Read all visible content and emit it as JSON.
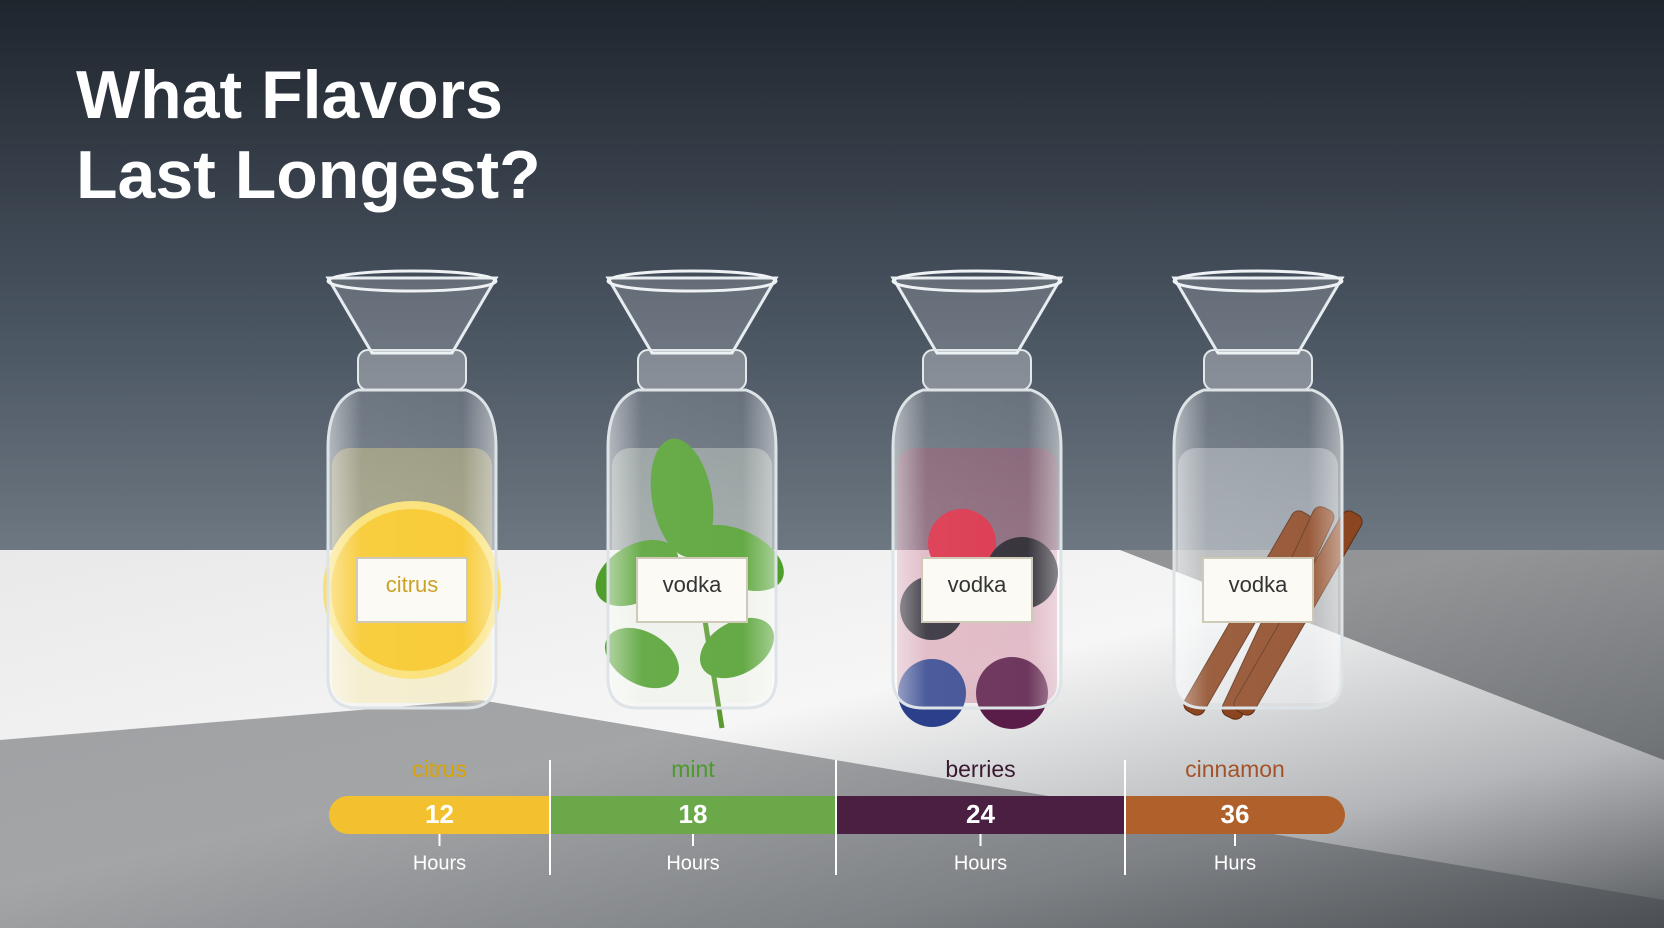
{
  "header": {
    "title_lines": [
      "What Flavors",
      "Last Longest?"
    ]
  },
  "jars": [
    {
      "label": "citrus"
    },
    {
      "label": "vodka"
    },
    {
      "label": "vodka"
    },
    {
      "label": "vodka"
    }
  ],
  "timeline": {
    "items": [
      {
        "flavor": "citrus",
        "hours": "12",
        "unit": "Hours",
        "color": "#f3c12f",
        "text_color": "#d9a300"
      },
      {
        "flavor": "mint",
        "hours": "18",
        "unit": "Hours",
        "color": "#6aa84a",
        "text_color": "#4c9a2a"
      },
      {
        "flavor": "berries",
        "hours": "24",
        "unit": "Hours",
        "color": "#4a1f42",
        "text_color": "#3a1a30"
      },
      {
        "flavor": "cinnamon",
        "hours": "36",
        "unit": "Hurs",
        "color": "#b0612b",
        "text_color": "#a3532a"
      }
    ]
  }
}
